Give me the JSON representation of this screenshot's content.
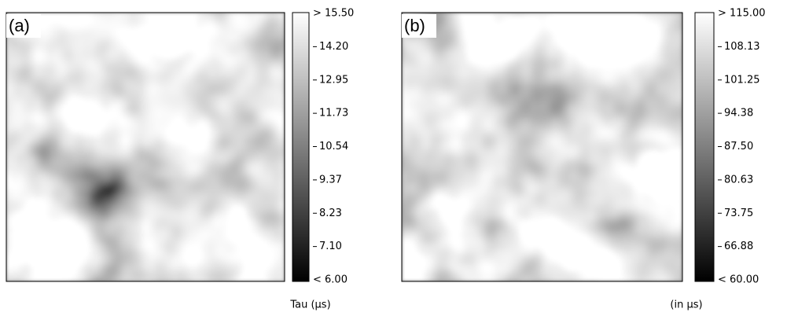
{
  "panels": [
    {
      "label": "(a)",
      "colorbar": {
        "ticks": [
          "> 15.50",
          "14.20",
          "12.95",
          "11.73",
          "10.54",
          "9.37",
          "8.23",
          "7.10",
          "< 6.00"
        ]
      },
      "unit": "Tau (μs)"
    },
    {
      "label": "(b)",
      "colorbar": {
        "ticks": [
          "> 115.00",
          "108.13",
          "101.25",
          "94.38",
          "87.50",
          "80.63",
          "73.75",
          "66.88",
          "< 60.00"
        ]
      },
      "unit": "(in μs)"
    }
  ]
}
